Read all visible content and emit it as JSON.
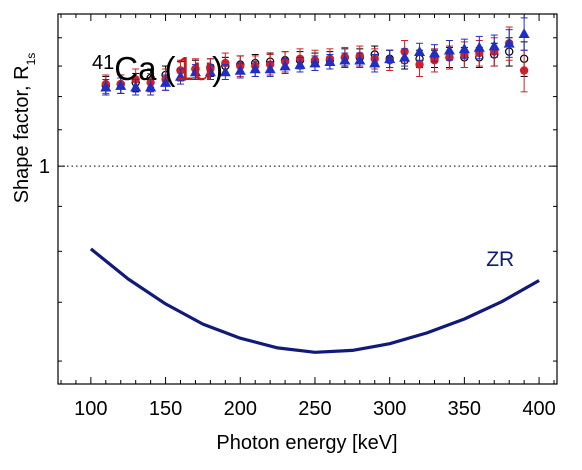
{
  "chart_data": {
    "type": "scatter",
    "title_parts": {
      "isotope_mass": "41",
      "element": "Ca",
      "paren_open": "(",
      "transition": "1u",
      "paren_close": ")"
    },
    "xlabel": "Photon energy [keV]",
    "ylabel_main": "Shape factor, R",
    "ylabel_sub": "1s",
    "xlim": [
      78,
      412
    ],
    "ylim": [
      0.565,
      1.49
    ],
    "y_scale": "log",
    "x_ticks": [
      100,
      150,
      200,
      250,
      300,
      350,
      400
    ],
    "x_minor_step": 10,
    "y_tick_labels": [
      {
        "value": 1,
        "label": "1"
      }
    ],
    "reference_line": {
      "y": 1,
      "style": "dotted"
    },
    "colors": {
      "red": "#d0202a",
      "blue": "#1f2fc4",
      "black": "#000000",
      "zr": "#0f1a7a",
      "transition": "#c41a1a"
    },
    "series": [
      {
        "marker": "open-circle",
        "x": [
          110,
          120,
          130,
          140,
          150,
          160,
          170,
          180,
          190,
          200,
          210,
          220,
          230,
          240,
          250,
          260,
          270,
          280,
          290,
          300,
          310,
          320,
          330,
          340,
          350,
          360,
          370,
          380,
          390
        ],
        "y": [
          1.235,
          1.24,
          1.245,
          1.26,
          1.27,
          1.285,
          1.29,
          1.295,
          1.3,
          1.305,
          1.31,
          1.315,
          1.32,
          1.32,
          1.315,
          1.32,
          1.33,
          1.33,
          1.34,
          1.325,
          1.32,
          1.325,
          1.325,
          1.33,
          1.33,
          1.33,
          1.34,
          1.35,
          1.325
        ],
        "err": [
          0.03,
          0.03,
          0.03,
          0.03,
          0.03,
          0.03,
          0.03,
          0.03,
          0.03,
          0.03,
          0.03,
          0.03,
          0.03,
          0.03,
          0.03,
          0.03,
          0.03,
          0.03,
          0.03,
          0.03,
          0.03,
          0.03,
          0.03,
          0.035,
          0.035,
          0.035,
          0.04,
          0.05,
          0.06
        ]
      },
      {
        "marker": "filled-circle",
        "x": [
          110,
          120,
          130,
          140,
          150,
          160,
          170,
          180,
          190,
          200,
          210,
          220,
          230,
          240,
          250,
          260,
          270,
          280,
          290,
          300,
          310,
          320,
          330,
          340,
          350,
          360,
          370,
          380,
          390
        ],
        "y": [
          1.24,
          1.24,
          1.255,
          1.245,
          1.255,
          1.285,
          1.29,
          1.29,
          1.31,
          1.3,
          1.3,
          1.305,
          1.315,
          1.325,
          1.32,
          1.325,
          1.33,
          1.335,
          1.325,
          1.32,
          1.35,
          1.305,
          1.32,
          1.33,
          1.34,
          1.345,
          1.35,
          1.38,
          1.285
        ],
        "err": [
          0.03,
          0.03,
          0.035,
          0.03,
          0.035,
          0.035,
          0.035,
          0.035,
          0.035,
          0.035,
          0.035,
          0.035,
          0.035,
          0.035,
          0.035,
          0.035,
          0.035,
          0.035,
          0.035,
          0.035,
          0.04,
          0.04,
          0.04,
          0.04,
          0.045,
          0.045,
          0.05,
          0.06,
          0.07
        ]
      },
      {
        "marker": "filled-triangle",
        "x": [
          110,
          120,
          130,
          140,
          150,
          160,
          170,
          180,
          190,
          200,
          210,
          220,
          230,
          240,
          250,
          260,
          270,
          280,
          290,
          300,
          310,
          320,
          330,
          340,
          350,
          360,
          370,
          380,
          390
        ],
        "y": [
          1.23,
          1.235,
          1.23,
          1.23,
          1.245,
          1.265,
          1.28,
          1.28,
          1.28,
          1.285,
          1.29,
          1.29,
          1.3,
          1.305,
          1.31,
          1.315,
          1.32,
          1.32,
          1.31,
          1.325,
          1.33,
          1.35,
          1.345,
          1.355,
          1.36,
          1.365,
          1.37,
          1.38,
          1.415
        ],
        "err": [
          0.025,
          0.025,
          0.025,
          0.025,
          0.025,
          0.025,
          0.025,
          0.025,
          0.025,
          0.025,
          0.025,
          0.025,
          0.025,
          0.025,
          0.025,
          0.025,
          0.025,
          0.025,
          0.03,
          0.03,
          0.03,
          0.03,
          0.03,
          0.035,
          0.035,
          0.04,
          0.04,
          0.05,
          0.06
        ]
      }
    ],
    "curve": {
      "label": "ZR",
      "x": [
        100,
        125,
        150,
        175,
        200,
        225,
        250,
        275,
        300,
        325,
        350,
        375,
        400
      ],
      "y": [
        0.805,
        0.744,
        0.697,
        0.661,
        0.637,
        0.621,
        0.614,
        0.617,
        0.628,
        0.646,
        0.67,
        0.701,
        0.741
      ]
    }
  }
}
